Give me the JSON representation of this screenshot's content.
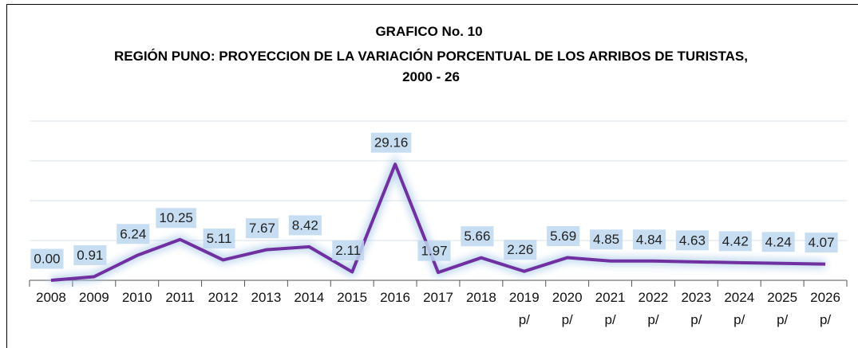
{
  "chart_data": {
    "type": "line",
    "title": "GRAFICO No. 10",
    "subtitle": "REGIÓN PUNO: PROYECCION DE LA VARIACIÓN PORCENTUAL DE LOS ARRIBOS DE TURISTAS, 2000 - 26",
    "categories": [
      "2008",
      "2009",
      "2010",
      "2011",
      "2012",
      "2013",
      "2014",
      "2015",
      "2016",
      "2017",
      "2018",
      "2019 p/",
      "2020 p/",
      "2021 p/",
      "2022 p/",
      "2023 p/",
      "2024 p/",
      "2025 p/",
      "2026 p/"
    ],
    "series": [
      {
        "color": "#7030a0",
        "values": [
          0,
          0.91,
          6.24,
          10.25,
          5.11,
          7.67,
          8.42,
          2.11,
          29.16,
          1.97,
          5.66,
          2.26,
          5.69,
          4.85,
          4.84,
          4.63,
          4.42,
          4.24,
          4.07
        ],
        "value_labels": [
          "0.00",
          "0.91",
          "6.24",
          "10.25",
          "5.11",
          "7.67",
          "8.42",
          "2.11",
          "29.16",
          "1.97",
          "5.66",
          "2.26",
          "5.69",
          "4.85",
          "4.84",
          "4.63",
          "4.42",
          "4.24",
          "4.07"
        ]
      }
    ],
    "ylim": [
      0,
      40
    ],
    "yticks": [
      0,
      10,
      20,
      30,
      40
    ],
    "grid": true
  }
}
